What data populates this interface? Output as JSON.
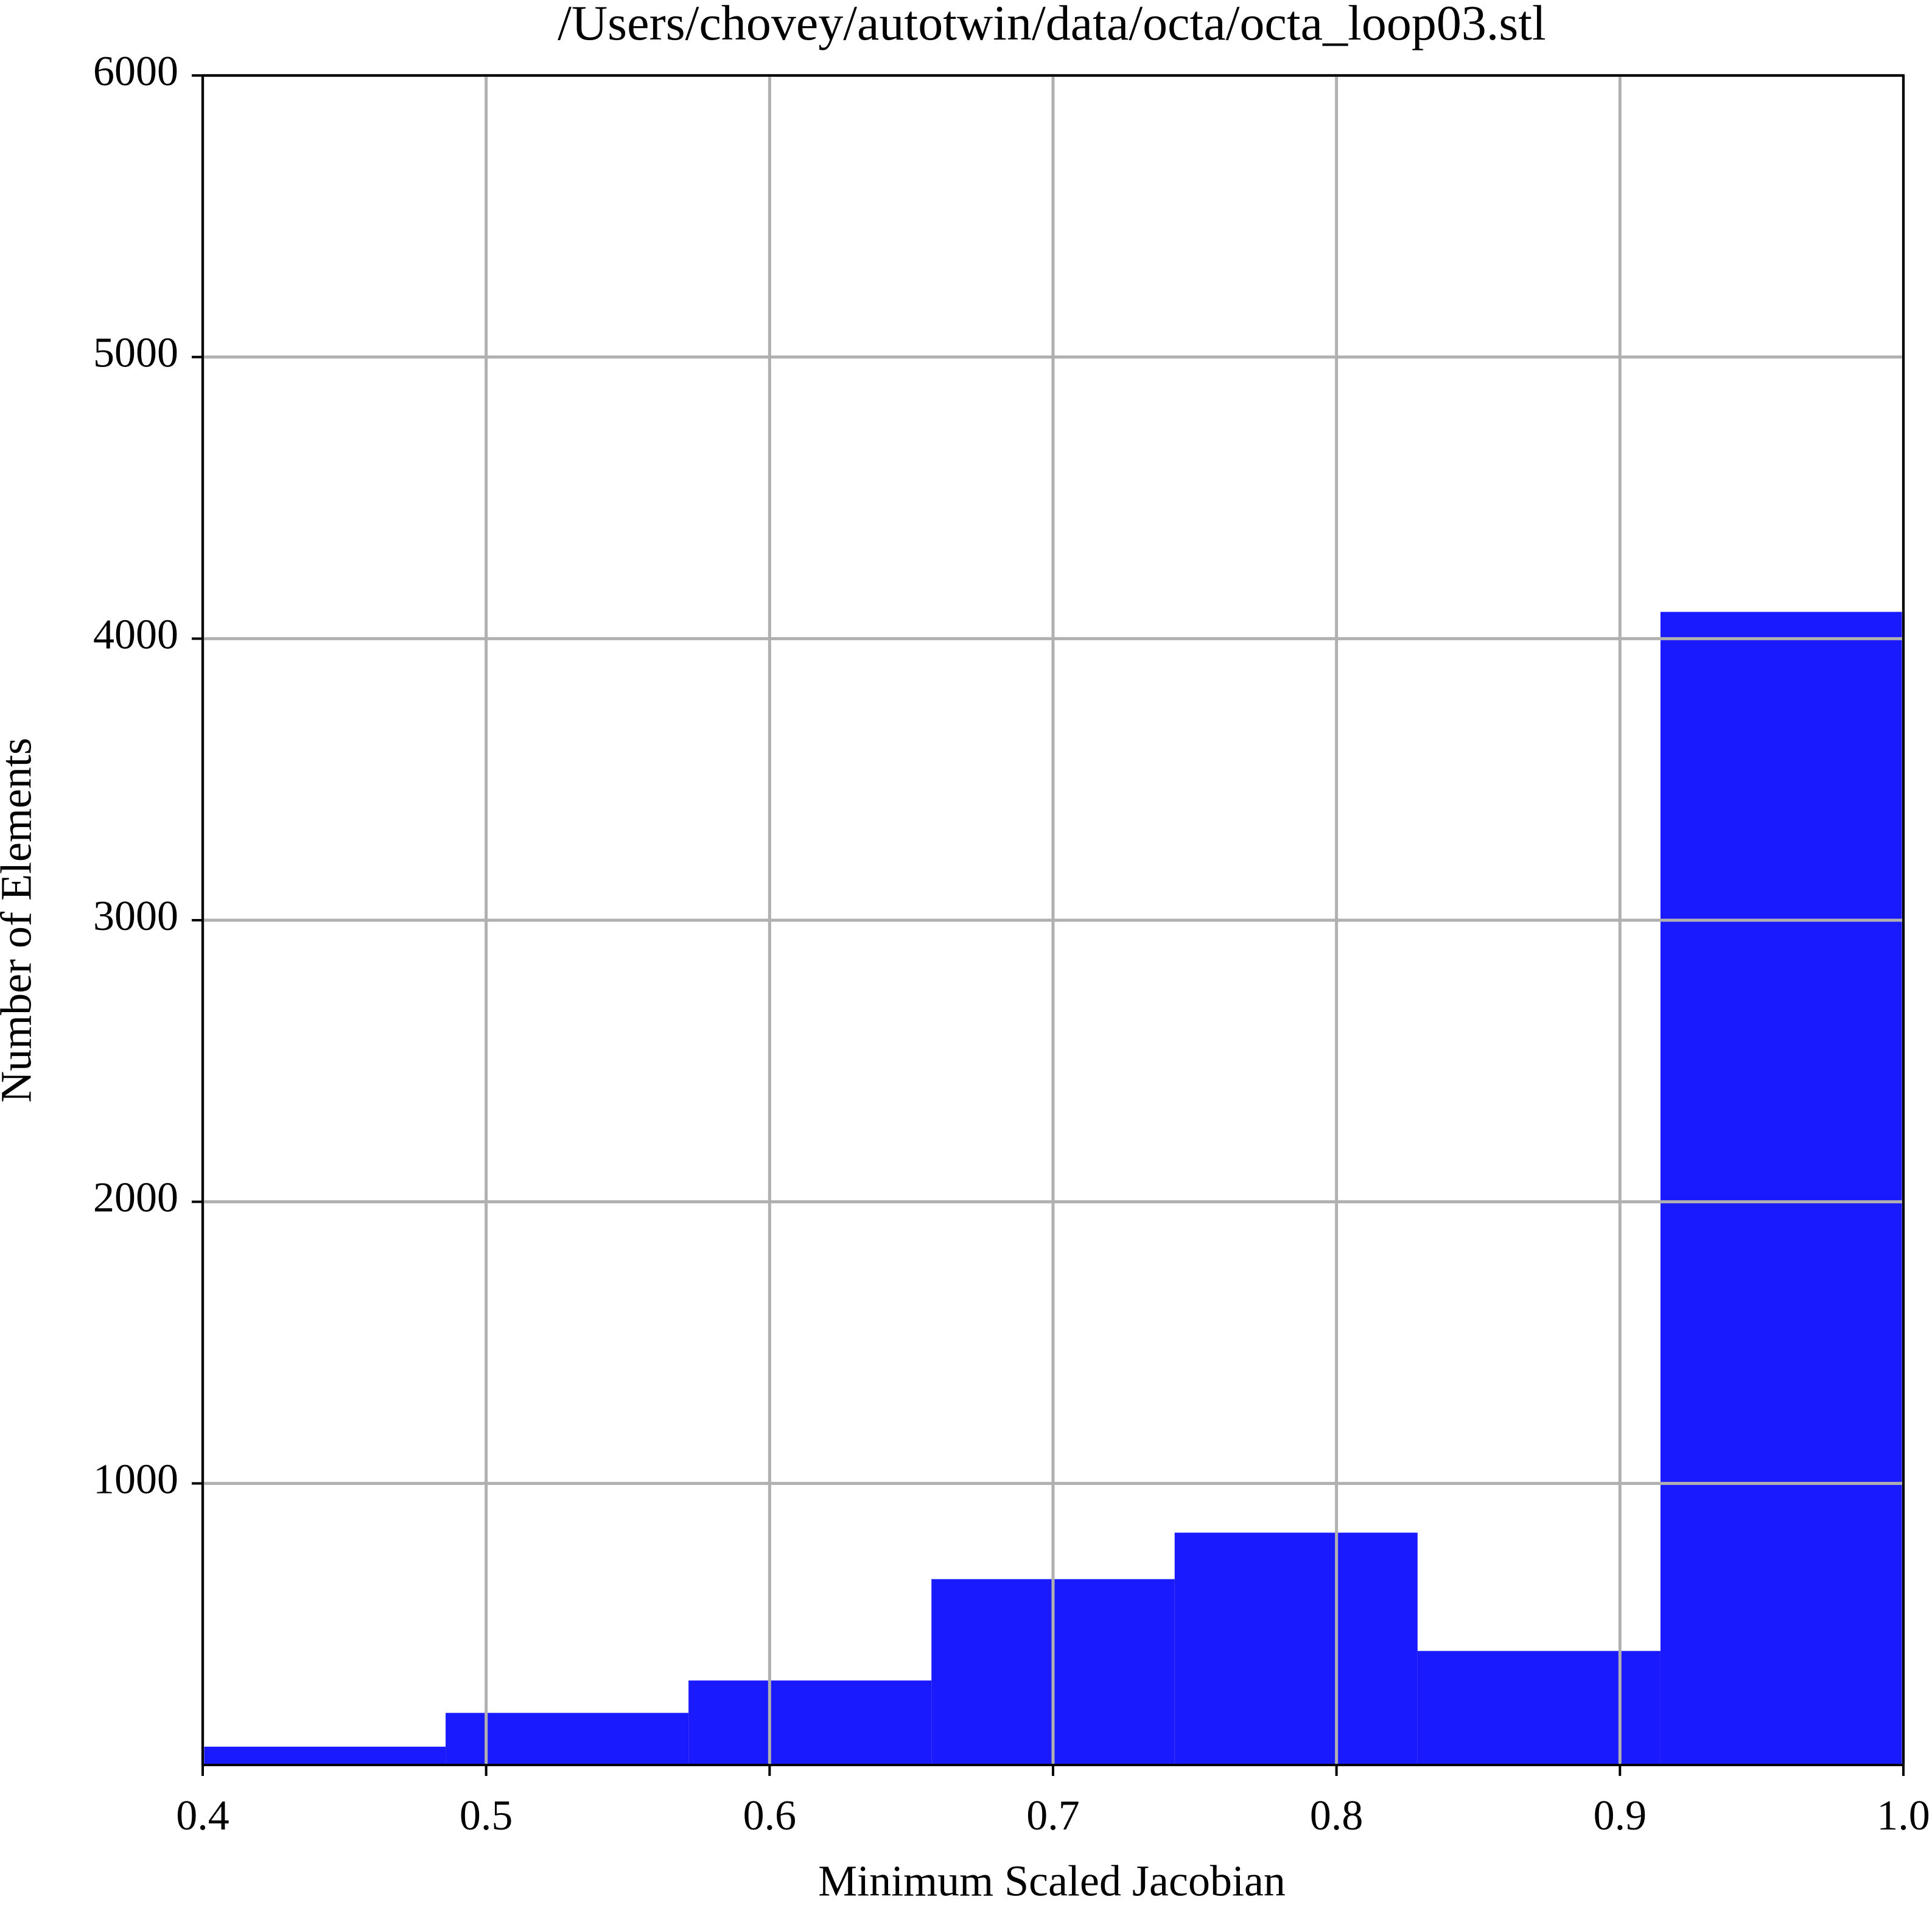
{
  "chart_data": {
    "type": "histogram",
    "title": "/Users/chovey/autotwin/data/octa/octa_loop03.stl",
    "x_label": "Minimum Scaled Jacobian",
    "y_label": "Number of Elements",
    "bins": [
      0.4,
      0.4857,
      0.5714,
      0.6571,
      0.7429,
      0.8286,
      0.9143,
      1.0
    ],
    "values": [
      65,
      185,
      300,
      660,
      825,
      405,
      4095
    ],
    "color": "#1a1aff",
    "xlim": [
      0.4,
      1.0
    ],
    "xticks": [
      0.4,
      0.5,
      0.6,
      0.7,
      0.8,
      0.9,
      {
        "value": 1.0,
        "label": "1.0"
      }
    ],
    "ylim": [
      0,
      6000
    ],
    "yticks": [
      1000,
      2000,
      3000,
      4000,
      5000,
      6000
    ],
    "grid": true
  }
}
